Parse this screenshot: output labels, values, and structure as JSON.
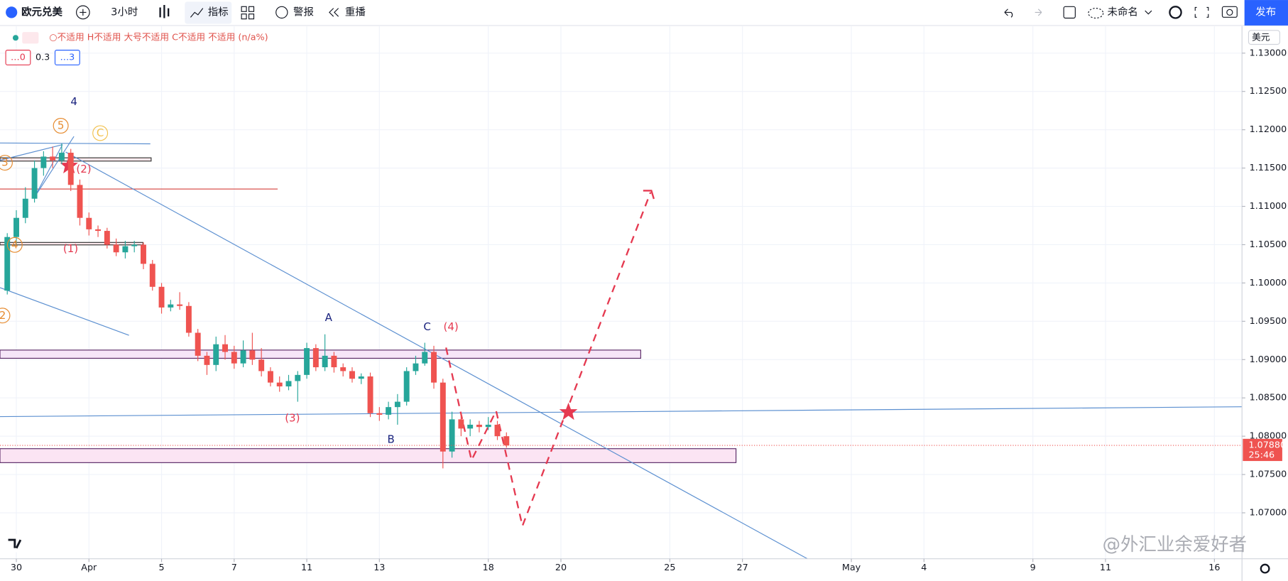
{
  "toolbar": {
    "symbol": "欧元兑美",
    "interval": "3小时",
    "indicators": "指标",
    "alert": "警报",
    "replay": "重播",
    "layout_name": "未命名",
    "publish": "发布"
  },
  "legend": {
    "ohlc": "○不适用 H不适用 大号不适用 C不适用 不适用 (n/a%)",
    "inputs": [
      "…0",
      "0.3",
      "…3"
    ]
  },
  "watermark": "@外汇业余爱好者",
  "chart_data": {
    "type": "candlestick",
    "up_color": "#26a69a",
    "down_color": "#ef5350",
    "grid": true,
    "price_axis_unit": "美元",
    "x": [
      -0.25,
      0,
      0.25,
      0.5,
      0.75,
      1,
      1.25,
      1.5,
      1.75,
      2,
      2.25,
      2.5,
      2.75,
      3,
      3.25,
      3.5,
      3.75,
      4,
      4.25,
      4.5,
      4.75,
      5,
      5.25,
      5.5,
      5.75,
      6,
      6.25,
      6.5,
      6.75,
      7,
      7.25,
      7.5,
      7.75,
      8,
      8.25,
      8.5,
      8.75,
      9,
      9.25,
      9.5,
      9.75,
      10,
      10.25,
      10.5,
      10.75,
      11,
      11.25,
      11.5,
      11.75,
      12,
      12.25,
      12.5,
      12.75,
      13,
      13.25,
      13.5
    ],
    "open": [
      1.099,
      1.106,
      1.1085,
      1.111,
      1.115,
      1.1165,
      1.116,
      1.117,
      1.1128,
      1.1085,
      1.107,
      1.1068,
      1.105,
      1.104,
      1.1048,
      1.105,
      1.1025,
      1.0995,
      1.0968,
      1.0972,
      1.097,
      1.0935,
      1.0905,
      1.0893,
      1.092,
      1.091,
      1.0895,
      1.0912,
      1.09,
      1.0885,
      1.087,
      1.0865,
      1.0872,
      1.088,
      1.0915,
      1.089,
      1.0905,
      1.089,
      1.0885,
      1.0875,
      1.0878,
      1.083,
      1.0828,
      1.0838,
      1.0845,
      1.0885,
      1.0895,
      1.091,
      1.087,
      1.078,
      1.0822,
      1.081,
      1.0815,
      1.0812,
      1.0815,
      1.08
    ],
    "high": [
      1.1065,
      1.1095,
      1.1125,
      1.116,
      1.1172,
      1.1178,
      1.1182,
      1.1175,
      1.1135,
      1.1092,
      1.1075,
      1.1072,
      1.1058,
      1.1055,
      1.1055,
      1.1053,
      1.103,
      1.1,
      1.0978,
      1.0988,
      1.0975,
      1.094,
      1.091,
      1.093,
      1.0932,
      1.0918,
      1.0925,
      1.0935,
      1.0915,
      1.089,
      1.0878,
      1.088,
      1.0885,
      1.0922,
      1.092,
      1.0933,
      1.091,
      1.0895,
      1.089,
      1.0882,
      1.0883,
      1.0838,
      1.0845,
      1.0855,
      1.089,
      1.0905,
      1.0922,
      1.0918,
      1.0875,
      1.0832,
      1.083,
      1.0822,
      1.082,
      1.0825,
      1.082,
      1.0805
    ],
    "low": [
      1.0985,
      1.105,
      1.1078,
      1.1105,
      1.114,
      1.115,
      1.1155,
      1.112,
      1.1075,
      1.1062,
      1.106,
      1.1045,
      1.1035,
      1.1032,
      1.104,
      1.1018,
      1.099,
      1.096,
      1.0963,
      1.0965,
      1.093,
      1.0898,
      1.088,
      1.0885,
      1.09,
      1.0888,
      1.089,
      1.0893,
      1.0878,
      1.0865,
      1.0858,
      1.086,
      1.0845,
      1.0875,
      1.0885,
      1.0885,
      1.0883,
      1.0878,
      1.087,
      1.0868,
      1.0825,
      1.082,
      1.0822,
      1.0815,
      1.084,
      1.088,
      1.0892,
      1.0862,
      1.0758,
      1.0772,
      1.08,
      1.08,
      1.0805,
      1.0808,
      1.0795,
      1.0785
    ],
    "close": [
      1.106,
      1.1085,
      1.111,
      1.115,
      1.1165,
      1.116,
      1.117,
      1.1128,
      1.1085,
      1.107,
      1.1068,
      1.105,
      1.104,
      1.1048,
      1.105,
      1.1025,
      1.0995,
      1.0968,
      1.0972,
      1.097,
      1.0935,
      1.0905,
      1.0893,
      1.092,
      1.091,
      1.0895,
      1.0912,
      1.09,
      1.0885,
      1.087,
      1.0865,
      1.0872,
      1.088,
      1.0915,
      1.089,
      1.0905,
      1.089,
      1.0885,
      1.0875,
      1.0878,
      1.083,
      1.0828,
      1.0838,
      1.0845,
      1.0885,
      1.0895,
      1.091,
      1.087,
      1.078,
      1.0822,
      1.081,
      1.0815,
      1.0812,
      1.0815,
      1.08,
      1.0788
    ],
    "xlim": [
      -0.45,
      33.76
    ],
    "xticks": [
      {
        "value": 0,
        "label": "30"
      },
      {
        "value": 2,
        "label": "Apr"
      },
      {
        "value": 4,
        "label": "5"
      },
      {
        "value": 6,
        "label": "7"
      },
      {
        "value": 8,
        "label": "11"
      },
      {
        "value": 10,
        "label": "13"
      },
      {
        "value": 13,
        "label": "18"
      },
      {
        "value": 15,
        "label": "20"
      },
      {
        "value": 18,
        "label": "25"
      },
      {
        "value": 20,
        "label": "27"
      },
      {
        "value": 23,
        "label": "May"
      },
      {
        "value": 25,
        "label": "4"
      },
      {
        "value": 28,
        "label": "9"
      },
      {
        "value": 30,
        "label": "11"
      },
      {
        "value": 33,
        "label": "16"
      }
    ],
    "ylim": [
      1.064,
      1.1335
    ],
    "yticks": [
      {
        "value": 1.07,
        "label": "1.07000"
      },
      {
        "value": 1.075,
        "label": "1.07500"
      },
      {
        "value": 1.08,
        "label": "1.08000"
      },
      {
        "value": 1.085,
        "label": "1.08500"
      },
      {
        "value": 1.09,
        "label": "1.09000"
      },
      {
        "value": 1.095,
        "label": "1.09500"
      },
      {
        "value": 1.1,
        "label": "1.10000"
      },
      {
        "value": 1.105,
        "label": "1.10500"
      },
      {
        "value": 1.11,
        "label": "1.11000"
      },
      {
        "value": 1.115,
        "label": "1.11500"
      },
      {
        "value": 1.12,
        "label": "1.12000"
      },
      {
        "value": 1.125,
        "label": "1.12500"
      },
      {
        "value": 1.13,
        "label": "1.13000"
      }
    ],
    "last_price": {
      "value": 1.0788,
      "label": "1.07880"
    },
    "countdown": "25:46",
    "annotations": [
      "4",
      "5",
      "C",
      "3",
      "(2)",
      "4",
      "(1)",
      "2",
      "A",
      "C",
      "(4)",
      "(3)",
      "B"
    ]
  }
}
